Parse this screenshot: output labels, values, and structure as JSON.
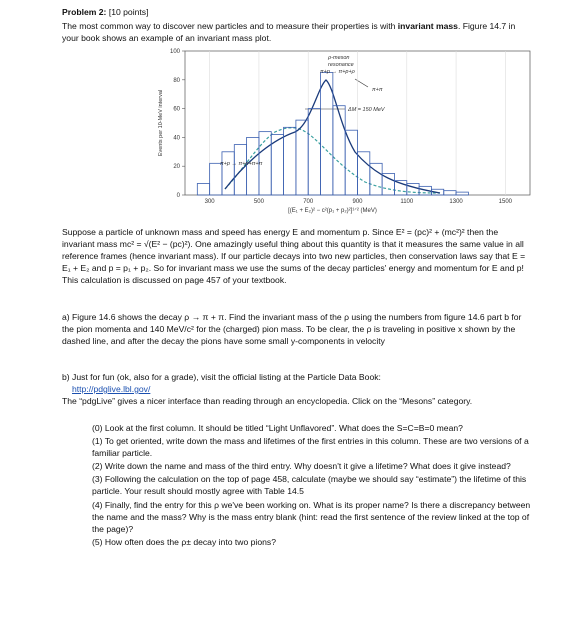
{
  "header": {
    "title": "Problem 2:",
    "points": "[10 points]"
  },
  "intro": {
    "text": "The most common way to discover new particles and to measure their properties is with ",
    "bold": "invariant mass",
    "tail": ". Figure 14.7 in your book shows an example of an invariant mass plot."
  },
  "figure": {
    "chart_data": {
      "type": "histogram",
      "bins": [
        250,
        300,
        350,
        400,
        450,
        500,
        550,
        600,
        650,
        700,
        750,
        800,
        850,
        900,
        950,
        1000,
        1050,
        1100,
        1150,
        1200,
        1250,
        1300,
        1350
      ],
      "values": [
        8,
        22,
        30,
        35,
        40,
        44,
        42,
        47,
        52,
        60,
        85,
        62,
        45,
        30,
        22,
        15,
        10,
        8,
        6,
        4,
        3,
        2
      ],
      "color": "#3a5fb0",
      "xlim": [
        200,
        1600
      ],
      "xticks": [
        300,
        500,
        700,
        900,
        1100,
        1300,
        1500
      ],
      "ylim": [
        0,
        100
      ],
      "yticks": [
        0,
        20,
        40,
        60,
        80,
        100
      ],
      "grid": true,
      "ylabel": "Events per 10-MeV interval",
      "xlabel": "[(E₁ + E₂)² − c²(p₁ + p₂)²]¹ᐟ² (MeV)",
      "annotations": [
        "ρ-meson",
        "resonance",
        "π+p → π+p+ρ",
        "π+π",
        "ΔM = 150 MeV",
        "π+p → π+p+π+π"
      ]
    }
  },
  "body": {
    "paragraph": "Suppose a particle of unknown mass and speed has energy E and momentum p. Since E² = (pc)² + (mc²)² then the invariant mass mc² = √(E² − (pc)²). One amazingly useful thing about this quantity is that it measures the same value in all reference frames (hence invariant mass). If our particle decays into two new particles, then conservation laws say that E = E₁ + E₂ and p = p₁ + p₂. So for invariant mass we use the sums of the decay particles' energy and momentum for E and p! This calculation is discussed on page 457 of your textbook.",
    "part_a": "a) Figure 14.6 shows the decay ρ → π + π. Find the invariant mass of the ρ using the numbers from figure 14.6 part b for the pion momenta and 140 MeV/c² for the (charged) pion mass. To be clear, the ρ is traveling in positive x shown by the dashed line, and after the decay the pions have some small y-components in velocity",
    "part_b": "b) Just for fun (ok, also for a grade), visit the official listing at the Particle Data Book:",
    "link": "http://pdglive.lbl.gov/",
    "pdg": "The “pdgLive” gives a nicer interface than reading through an encyclopedia. Click on the “Mesons” category.",
    "items": [
      "(0) Look at the first column. It should be titled “Light Unflavored”. What does the S=C=B=0 mean?",
      "(1) To get oriented, write down the mass and lifetimes of the first entries in this column. These are two versions of a familiar particle.",
      "(2) Write down the name and mass of the third entry. Why doesn't it give a lifetime? What does it give instead?",
      "(3) Following the calculation on the top of page 458, calculate (maybe we should say “estimate”) the lifetime of this particle. Your result should mostly agree with Table 14.5",
      "(4) Finally, find the entry for this ρ we've been working on. What is its proper name? Is there a discrepancy between the name and the mass? Why is the mass entry blank (hint: read the first sentence of the review linked at the top of the page)?",
      "(5) How often does the ρ± decay into two pions?"
    ]
  }
}
